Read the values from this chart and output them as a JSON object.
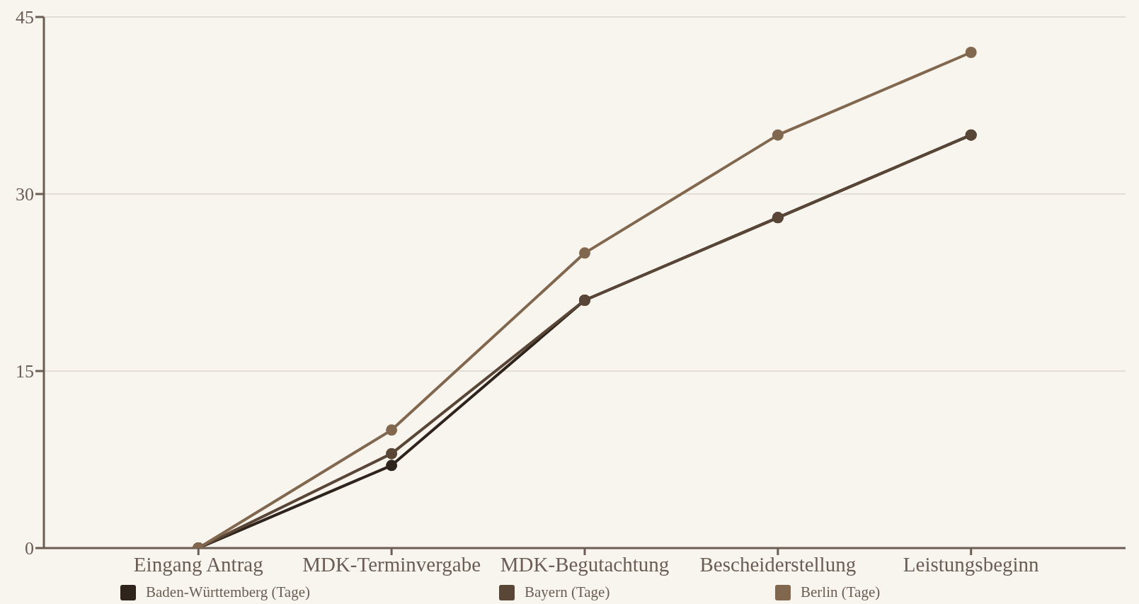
{
  "chart_data": {
    "type": "line",
    "categories": [
      "Eingang Antrag",
      "MDK-Terminvergabe",
      "MDK-Begutachtung",
      "Bescheiderstellung",
      "Leistungsbeginn"
    ],
    "series": [
      {
        "name": "Baden-Württemberg (Tage)",
        "color": "#2e241c",
        "values": [
          0,
          7,
          21,
          28,
          35
        ]
      },
      {
        "name": "Bayern (Tage)",
        "color": "#5a4636",
        "values": [
          0,
          8,
          21,
          28,
          35
        ]
      },
      {
        "name": "Berlin (Tage)",
        "color": "#80674e",
        "values": [
          0,
          10,
          25,
          35,
          42
        ]
      }
    ],
    "ylim": [
      0,
      45
    ],
    "yticks": [
      0,
      15,
      30,
      45
    ],
    "grid": "y",
    "legend": "bottom",
    "marker": "circle",
    "line_style": "solid"
  }
}
